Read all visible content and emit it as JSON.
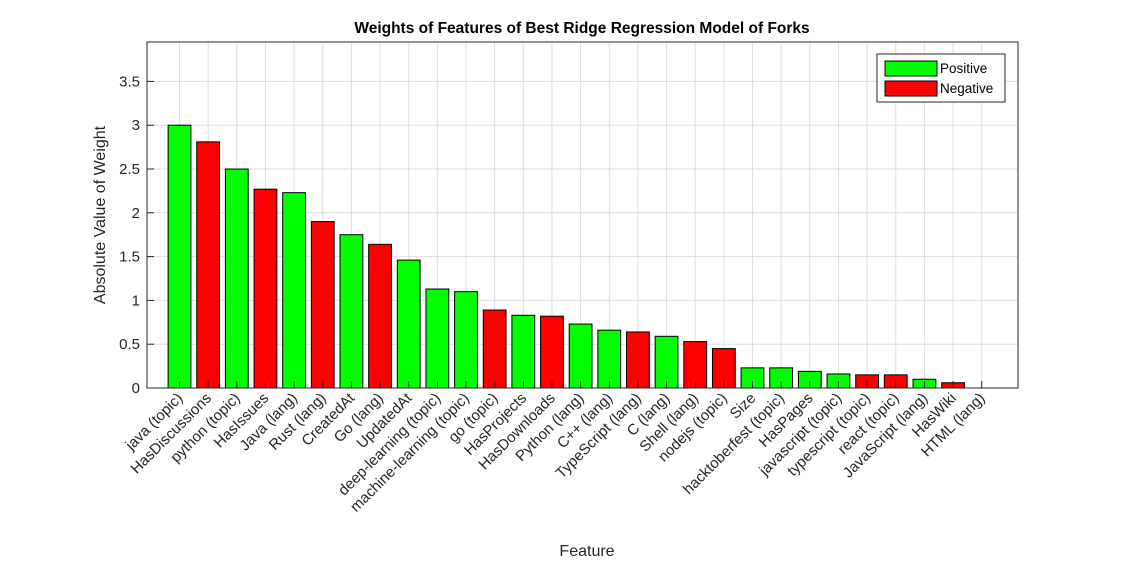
{
  "chart_data": {
    "type": "bar",
    "title": "Weights of Features of Best Ridge Regression Model of Forks",
    "xlabel": "Feature",
    "ylabel": "Absolute Value of Weight",
    "ylim": [
      0,
      3.95
    ],
    "yticks": [
      0,
      0.5,
      1,
      1.5,
      2,
      2.5,
      3,
      3.5
    ],
    "ytick_labels": [
      "0",
      "0.5",
      "1",
      "1.5",
      "2",
      "2.5",
      "3",
      "3.5"
    ],
    "grid": true,
    "legend_position": "top-right",
    "legend": [
      {
        "label": "Positive",
        "color": "#00ff00"
      },
      {
        "label": "Negative",
        "color": "#ff0000"
      }
    ],
    "categories": [
      "java (topic)",
      "HasDiscussions",
      "python (topic)",
      "HasIssues",
      "Java (lang)",
      "Rust (lang)",
      "CreatedAt",
      "Go (lang)",
      "UpdatedAt",
      "deep-learning (topic)",
      "machine-learning (topic)",
      "go (topic)",
      "HasProjects",
      "HasDownloads",
      "Python (lang)",
      "C++ (lang)",
      "TypeScript (lang)",
      "C (lang)",
      "Shell (lang)",
      "nodejs (topic)",
      "Size",
      "hacktoberfest (topic)",
      "HasPages",
      "javascript (topic)",
      "typescript (topic)",
      "react (topic)",
      "JavaScript (lang)",
      "HasWiki",
      "HTML (lang)"
    ],
    "values": [
      3.0,
      2.81,
      2.5,
      2.27,
      2.23,
      1.9,
      1.75,
      1.64,
      1.46,
      1.13,
      1.1,
      0.89,
      0.83,
      0.82,
      0.73,
      0.66,
      0.64,
      0.59,
      0.53,
      0.45,
      0.23,
      0.23,
      0.19,
      0.16,
      0.15,
      0.15,
      0.1,
      0.06,
      0.0
    ],
    "sign": [
      "positive",
      "negative",
      "positive",
      "negative",
      "positive",
      "negative",
      "positive",
      "negative",
      "positive",
      "positive",
      "positive",
      "negative",
      "positive",
      "negative",
      "positive",
      "positive",
      "negative",
      "positive",
      "negative",
      "negative",
      "positive",
      "positive",
      "positive",
      "positive",
      "negative",
      "negative",
      "positive",
      "negative",
      "positive"
    ]
  }
}
